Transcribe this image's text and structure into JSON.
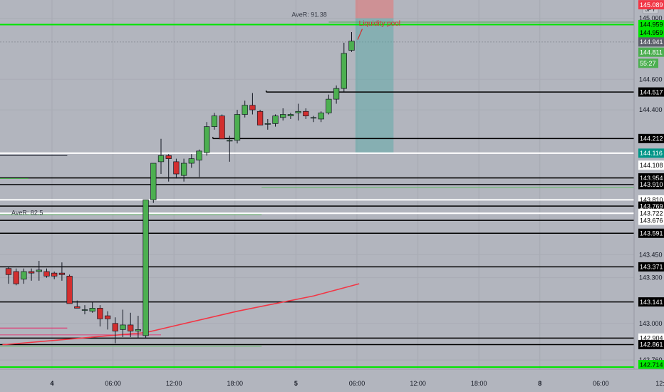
{
  "chart_data": {
    "type": "candlestick",
    "currency": "JPY",
    "currency_value": "0",
    "price_range": [
      142.7,
      145.12
    ],
    "price_ticks": [
      "145.000",
      "144.600",
      "144.400",
      "143.450",
      "143.300",
      "143.000",
      "142.760"
    ],
    "time_labels": [
      {
        "label": "4",
        "slot": 5.7
      },
      {
        "label": "06:00",
        "slot": 13.7
      },
      {
        "label": "12:00",
        "slot": 21.7
      },
      {
        "label": "18:00",
        "slot": 29.7
      },
      {
        "label": "5",
        "slot": 37.7
      },
      {
        "label": "06:00",
        "slot": 45.7
      },
      {
        "label": "12:00",
        "slot": 53.7
      },
      {
        "label": "18:00",
        "slot": 61.7
      },
      {
        "label": "8",
        "slot": 69.7
      },
      {
        "label": "06:00",
        "slot": 77.7
      },
      {
        "label": "12:0",
        "slot": 85.7
      }
    ],
    "candles": [
      {
        "o": 143.36,
        "h": 143.37,
        "l": 143.26,
        "c": 143.32
      },
      {
        "o": 143.34,
        "h": 143.36,
        "l": 143.25,
        "c": 143.26
      },
      {
        "o": 143.29,
        "h": 143.36,
        "l": 143.26,
        "c": 143.34
      },
      {
        "o": 143.34,
        "h": 143.36,
        "l": 143.28,
        "c": 143.33
      },
      {
        "o": 143.34,
        "h": 143.41,
        "l": 143.28,
        "c": 143.35
      },
      {
        "o": 143.34,
        "h": 143.36,
        "l": 143.3,
        "c": 143.31
      },
      {
        "o": 143.33,
        "h": 143.34,
        "l": 143.29,
        "c": 143.31
      },
      {
        "o": 143.33,
        "h": 143.4,
        "l": 143.28,
        "c": 143.32
      },
      {
        "o": 143.31,
        "h": 143.32,
        "l": 143.14,
        "c": 143.13
      },
      {
        "o": 143.11,
        "h": 143.15,
        "l": 143.1,
        "c": 143.1
      },
      {
        "o": 143.09,
        "h": 143.12,
        "l": 143.06,
        "c": 143.09
      },
      {
        "o": 143.08,
        "h": 143.14,
        "l": 143.07,
        "c": 143.1
      },
      {
        "o": 143.1,
        "h": 143.12,
        "l": 142.98,
        "c": 143.03
      },
      {
        "o": 143.05,
        "h": 143.08,
        "l": 142.96,
        "c": 143.03
      },
      {
        "o": 143.0,
        "h": 143.04,
        "l": 142.87,
        "c": 142.95
      },
      {
        "o": 142.96,
        "h": 143.09,
        "l": 142.91,
        "c": 142.99
      },
      {
        "o": 142.99,
        "h": 143.07,
        "l": 142.91,
        "c": 142.95
      },
      {
        "o": 142.95,
        "h": 143.05,
        "l": 142.9,
        "c": 142.96
      },
      {
        "o": 142.92,
        "h": 143.81,
        "l": 142.9,
        "c": 143.81
      },
      {
        "o": 143.81,
        "h": 144.05,
        "l": 143.79,
        "c": 144.05
      },
      {
        "o": 144.06,
        "h": 144.21,
        "l": 143.98,
        "c": 144.1
      },
      {
        "o": 144.1,
        "h": 144.11,
        "l": 143.93,
        "c": 144.08
      },
      {
        "o": 144.06,
        "h": 144.08,
        "l": 143.95,
        "c": 143.98
      },
      {
        "o": 143.97,
        "h": 144.08,
        "l": 143.93,
        "c": 144.05
      },
      {
        "o": 144.05,
        "h": 144.11,
        "l": 144.02,
        "c": 144.08
      },
      {
        "o": 144.07,
        "h": 144.14,
        "l": 143.96,
        "c": 144.13
      },
      {
        "o": 144.12,
        "h": 144.32,
        "l": 144.1,
        "c": 144.29
      },
      {
        "o": 144.29,
        "h": 144.38,
        "l": 144.27,
        "c": 144.36
      },
      {
        "o": 144.36,
        "h": 144.37,
        "l": 144.21,
        "c": 144.21
      },
      {
        "o": 144.2,
        "h": 144.23,
        "l": 144.06,
        "c": 144.2
      },
      {
        "o": 144.2,
        "h": 144.4,
        "l": 144.18,
        "c": 144.37
      },
      {
        "o": 144.37,
        "h": 144.46,
        "l": 144.35,
        "c": 144.43
      },
      {
        "o": 144.43,
        "h": 144.51,
        "l": 144.37,
        "c": 144.4
      },
      {
        "o": 144.39,
        "h": 144.4,
        "l": 144.3,
        "c": 144.3
      },
      {
        "o": 144.31,
        "h": 144.34,
        "l": 144.27,
        "c": 144.31
      },
      {
        "o": 144.31,
        "h": 144.37,
        "l": 144.29,
        "c": 144.36
      },
      {
        "o": 144.35,
        "h": 144.41,
        "l": 144.33,
        "c": 144.37
      },
      {
        "o": 144.36,
        "h": 144.38,
        "l": 144.34,
        "c": 144.37
      },
      {
        "o": 144.38,
        "h": 144.44,
        "l": 144.33,
        "c": 144.39
      },
      {
        "o": 144.39,
        "h": 144.41,
        "l": 144.34,
        "c": 144.36
      },
      {
        "o": 144.35,
        "h": 144.36,
        "l": 144.32,
        "c": 144.35
      },
      {
        "o": 144.34,
        "h": 144.39,
        "l": 144.32,
        "c": 144.38
      },
      {
        "o": 144.38,
        "h": 144.5,
        "l": 144.37,
        "c": 144.47
      },
      {
        "o": 144.47,
        "h": 144.56,
        "l": 144.44,
        "c": 144.54
      },
      {
        "o": 144.54,
        "h": 144.84,
        "l": 144.52,
        "c": 144.77
      },
      {
        "o": 144.79,
        "h": 144.91,
        "l": 144.78,
        "c": 144.85
      }
    ],
    "horizontal_levels": [
      {
        "price": 144.959,
        "color": "#00e600",
        "start_slot": -1,
        "width": 2
      },
      {
        "price": 144.517,
        "color": "#000000",
        "start_slot": 33.8,
        "width": 1.5
      },
      {
        "price": 144.212,
        "color": "#000000",
        "start_slot": 26.8,
        "width": 1.5
      },
      {
        "price": 144.116,
        "color": "#ffffff",
        "start_slot": -1,
        "width": 2
      },
      {
        "price": 143.954,
        "color": "#000000",
        "start_slot": -1,
        "width": 1.5
      },
      {
        "price": 143.91,
        "color": "#000000",
        "start_slot": -1,
        "width": 1.5
      },
      {
        "price": 143.81,
        "color": "#ffffff",
        "start_slot": -1,
        "width": 2
      },
      {
        "price": 143.769,
        "color": "#000000",
        "start_slot": -1,
        "width": 1.5
      },
      {
        "price": 143.722,
        "color": "#ffffff",
        "start_slot": -1,
        "width": 2
      },
      {
        "price": 143.676,
        "color": "#000000",
        "start_slot": -1,
        "width": 1.5
      },
      {
        "price": 143.591,
        "color": "#000000",
        "start_slot": -1,
        "width": 1.5
      },
      {
        "price": 143.371,
        "color": "#000000",
        "start_slot": -1,
        "width": 1.5
      },
      {
        "price": 143.141,
        "color": "#000000",
        "start_slot": -1,
        "width": 1.5
      },
      {
        "price": 142.904,
        "color": "#000000",
        "start_slot": -1,
        "width": 1.5
      },
      {
        "price": 142.861,
        "color": "#000000",
        "start_slot": -1,
        "width": 1.5
      },
      {
        "price": 142.714,
        "color": "#00e600",
        "start_slot": -1,
        "width": 2
      }
    ],
    "price_labels": [
      {
        "text": "145.089",
        "price": 145.089,
        "bg": "#f23645",
        "fg": "#ffffff"
      },
      {
        "text": "144.959",
        "price": 144.959,
        "bg": "#00e600",
        "fg": "#000000"
      },
      {
        "text": "144.959",
        "price": 144.905,
        "bg": "#00e600",
        "fg": "#000000"
      },
      {
        "text": "144.941",
        "price": 144.845,
        "bg": "#5d606b",
        "fg": "#ffffff"
      },
      {
        "text": "144.811",
        "price": 144.778,
        "bg": "#4caf50",
        "fg": "#ffffff"
      },
      {
        "text": "55:27",
        "price": 144.705,
        "bg": "#4caf50",
        "fg": "#ffffff",
        "short": true
      },
      {
        "text": "144.517",
        "price": 144.517,
        "bg": "#000000",
        "fg": "#ffffff"
      },
      {
        "text": "144.212",
        "price": 144.212,
        "bg": "#000000",
        "fg": "#ffffff"
      },
      {
        "text": "144.116",
        "price": 144.116,
        "bg": "#009688",
        "fg": "#ffffff"
      },
      {
        "text": "144.108",
        "price": 144.037,
        "bg": "#ffffff",
        "fg": "#000000"
      },
      {
        "text": "143.954",
        "price": 143.954,
        "bg": "#000000",
        "fg": "#ffffff"
      },
      {
        "text": "143.910",
        "price": 143.91,
        "bg": "#000000",
        "fg": "#ffffff"
      },
      {
        "text": "143.810",
        "price": 143.81,
        "bg": "#ffffff",
        "fg": "#000000"
      },
      {
        "text": "143.769",
        "price": 143.769,
        "bg": "#000000",
        "fg": "#ffffff"
      },
      {
        "text": "143.722",
        "price": 143.722,
        "bg": "#ffffff",
        "fg": "#000000"
      },
      {
        "text": "143.676",
        "price": 143.676,
        "bg": "#ffffff",
        "fg": "#000000"
      },
      {
        "text": "143.591",
        "price": 143.591,
        "bg": "#000000",
        "fg": "#ffffff"
      },
      {
        "text": "143.371",
        "price": 143.371,
        "bg": "#000000",
        "fg": "#ffffff"
      },
      {
        "text": "143.141",
        "price": 143.141,
        "bg": "#000000",
        "fg": "#ffffff"
      },
      {
        "text": "142.904",
        "price": 142.904,
        "bg": "#ffffff",
        "fg": "#000000"
      },
      {
        "text": "142.861",
        "price": 142.861,
        "bg": "#000000",
        "fg": "#ffffff"
      },
      {
        "text": "142.714",
        "price": 142.73,
        "bg": "#00e600",
        "fg": "#000000"
      },
      {
        "text": "142.714",
        "price": 142.685,
        "bg": "#00e600",
        "fg": "#000000"
      }
    ],
    "annotations": {
      "aver_top": {
        "text": "AveR: 91.38",
        "price": 145.0,
        "slot": 42.0
      },
      "aver_mid": {
        "text": "AveR: 82.5",
        "price": 143.72,
        "slot": 1.5
      },
      "liquidity_pool": {
        "text": "Liquidity pool",
        "price": 144.96,
        "slot": 49.5,
        "color": "#d32f2f"
      }
    },
    "position": {
      "start_slot": 45.5,
      "end_slot": 50.5,
      "entry": 145.0,
      "stop": 145.12,
      "target": 144.116
    },
    "moving_average": {
      "color": "#f23645",
      "points": [
        [
          -0.8,
          142.86
        ],
        [
          18,
          142.94
        ],
        [
          30,
          143.08
        ],
        [
          40,
          143.18
        ],
        [
          46,
          143.26
        ]
      ]
    }
  }
}
